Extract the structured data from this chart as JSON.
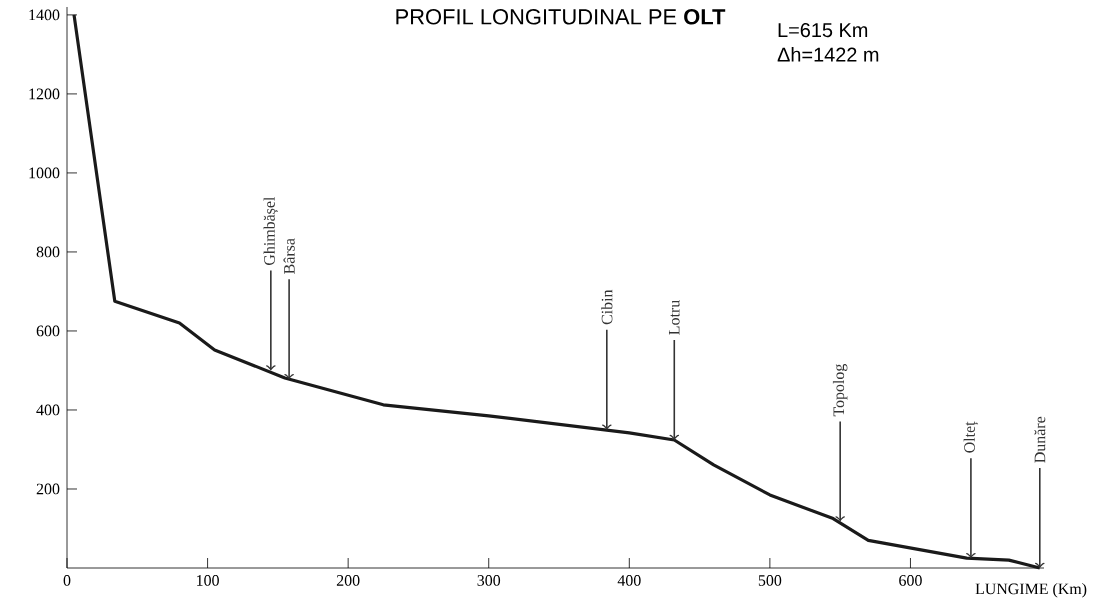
{
  "chart_data": {
    "type": "line",
    "title": "PROFIL LONGITUDINAL PE **OLT**",
    "xlabel": "LUNGIME (Km)",
    "x": [
      5,
      34,
      80,
      105,
      155,
      225,
      300,
      400,
      432,
      460,
      500,
      545,
      570,
      640,
      670,
      692
    ],
    "values": [
      1400,
      675,
      620,
      552,
      481,
      413,
      385,
      342,
      324,
      261,
      185,
      125,
      70,
      25,
      20,
      0
    ],
    "color": "#1a1a1a",
    "xlim": [
      0,
      695
    ],
    "ylim": [
      0,
      1420
    ],
    "xticks": [
      0,
      100,
      200,
      300,
      400,
      500,
      600
    ],
    "yticks": [
      200,
      400,
      600,
      800,
      1000,
      1200,
      1400
    ],
    "grid": false,
    "marker": "none",
    "line_style": "solid",
    "annotations": [
      "L=615 Km",
      "Δh=1422 m",
      {
        "text": "Ghimbășel",
        "x": 145,
        "y": 500
      },
      {
        "text": "Bârsa",
        "x": 158,
        "y": 478
      },
      {
        "text": "Cibin",
        "x": 384,
        "y": 350
      },
      {
        "text": "Lotru",
        "x": 432,
        "y": 324
      },
      {
        "text": "Topolog",
        "x": 550,
        "y": 118
      },
      {
        "text": "Olteț",
        "x": 643,
        "y": 25
      },
      {
        "text": "Dunăre",
        "x": 692,
        "y": 0
      }
    ]
  }
}
